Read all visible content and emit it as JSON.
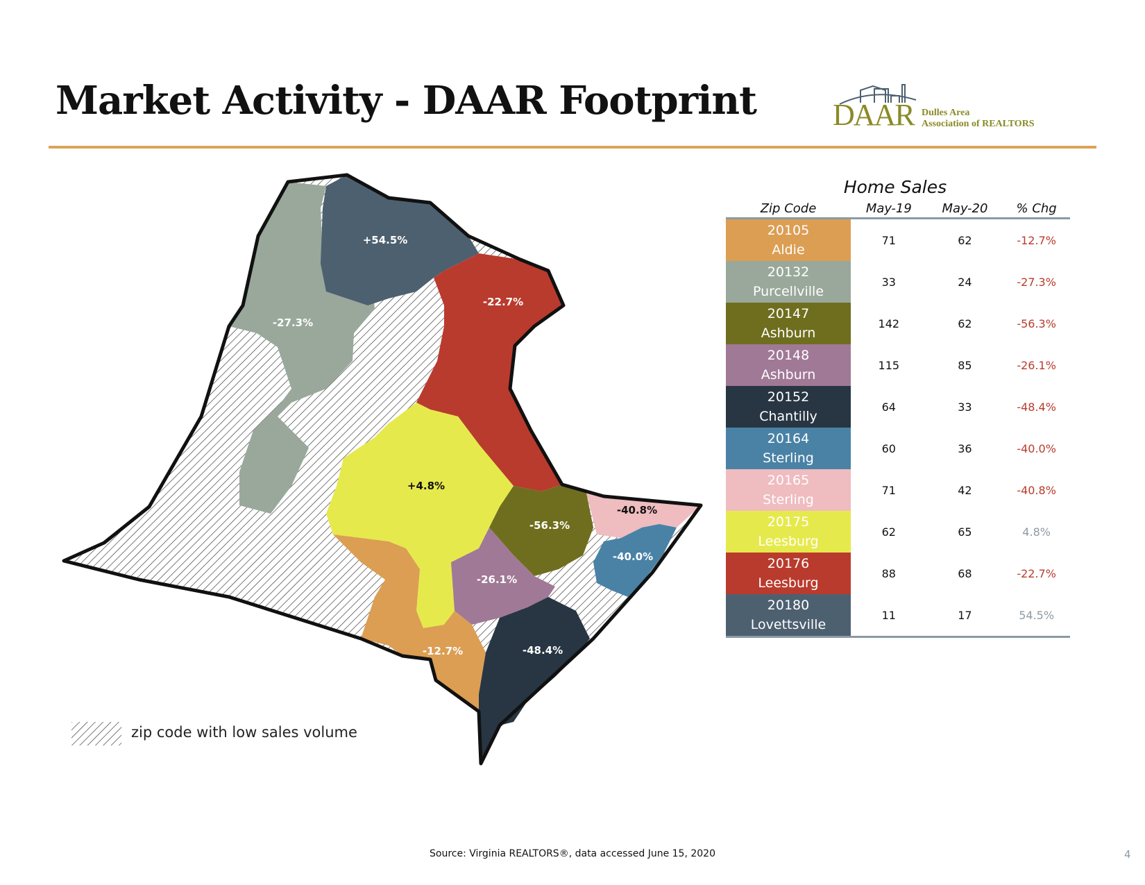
{
  "title": "Market Activity - DAAR Footprint",
  "logo": {
    "mark": "DAAR",
    "name_line1": "Dulles Area",
    "name_line2": "Association of REALTORS"
  },
  "map": {
    "regions": [
      {
        "id": "lovettsville",
        "label": "+54.5%",
        "color": "#4d6070"
      },
      {
        "id": "leesburg-20176",
        "label": "-22.7%",
        "color": "#b93b2d"
      },
      {
        "id": "purcellville",
        "label": "-27.3%",
        "color": "#99a89b"
      },
      {
        "id": "leesburg-20175",
        "label": "+4.8%",
        "color": "#e6e94c"
      },
      {
        "id": "ashburn-20147",
        "label": "-56.3%",
        "color": "#6f6e1e"
      },
      {
        "id": "sterling-20165",
        "label": "-40.8%",
        "color": "#efbcbf"
      },
      {
        "id": "sterling-20164",
        "label": "-40.0%",
        "color": "#4a82a6"
      },
      {
        "id": "ashburn-20148",
        "label": "-26.1%",
        "color": "#a07996"
      },
      {
        "id": "aldie",
        "label": "-12.7%",
        "color": "#dc9e53"
      },
      {
        "id": "chantilly",
        "label": "-48.4%",
        "color": "#283643"
      }
    ]
  },
  "legend": {
    "label": "zip code with low sales volume"
  },
  "table": {
    "title": "Home Sales",
    "headers": {
      "zip": "Zip Code",
      "may19": "May-19",
      "may20": "May-20",
      "chg": "% Chg"
    },
    "rows": [
      {
        "zip": "20105",
        "area": "Aldie",
        "may19": "71",
        "may20": "62",
        "chg": "-12.7%",
        "color": "#dc9e53",
        "chg_color": "#b93b2d"
      },
      {
        "zip": "20132",
        "area": "Purcellville",
        "may19": "33",
        "may20": "24",
        "chg": "-27.3%",
        "color": "#99a89b",
        "chg_color": "#b93b2d"
      },
      {
        "zip": "20147",
        "area": "Ashburn",
        "may19": "142",
        "may20": "62",
        "chg": "-56.3%",
        "color": "#6f6e1e",
        "chg_color": "#b93b2d"
      },
      {
        "zip": "20148",
        "area": "Ashburn",
        "may19": "115",
        "may20": "85",
        "chg": "-26.1%",
        "color": "#a07996",
        "chg_color": "#b93b2d"
      },
      {
        "zip": "20152",
        "area": "Chantilly",
        "may19": "64",
        "may20": "33",
        "chg": "-48.4%",
        "color": "#283643",
        "chg_color": "#b93b2d"
      },
      {
        "zip": "20164",
        "area": "Sterling",
        "may19": "60",
        "may20": "36",
        "chg": "-40.0%",
        "color": "#4a82a6",
        "chg_color": "#b93b2d"
      },
      {
        "zip": "20165",
        "area": "Sterling",
        "may19": "71",
        "may20": "42",
        "chg": "-40.8%",
        "color": "#efbcbf",
        "chg_color": "#b93b2d"
      },
      {
        "zip": "20175",
        "area": "Leesburg",
        "may19": "62",
        "may20": "65",
        "chg": "4.8%",
        "color": "#e6e94c",
        "chg_color": "#8e9aa3"
      },
      {
        "zip": "20176",
        "area": "Leesburg",
        "may19": "88",
        "may20": "68",
        "chg": "-22.7%",
        "color": "#b93b2d",
        "chg_color": "#b93b2d"
      },
      {
        "zip": "20180",
        "area": "Lovettsville",
        "may19": "11",
        "may20": "17",
        "chg": "54.5%",
        "color": "#4d6070",
        "chg_color": "#8e9aa3"
      }
    ]
  },
  "source": "Source: Virginia REALTORS®, data accessed June 15, 2020",
  "page_number": "4"
}
